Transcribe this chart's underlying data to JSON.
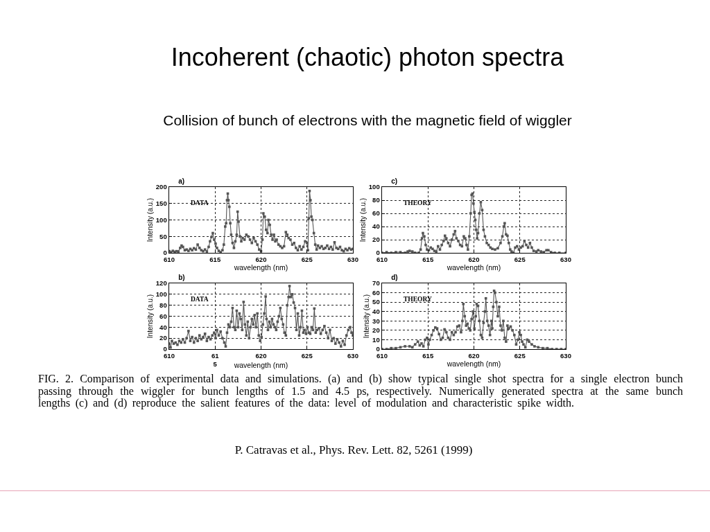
{
  "chart_data": [
    {
      "type": "other",
      "title": "Incoherent (chaotic) photon spectra",
      "subtitle": "Collision of bunch of electrons with the magnetic field of wiggler"
    },
    {
      "type": "line",
      "title": "a)",
      "xlabel": "wavelength (nm)",
      "ylabel": "Intensity (a.u.)",
      "annotations": [
        "DATA"
      ],
      "color": "#555555",
      "marker": "square",
      "line_style": "solid",
      "grid": true,
      "xlim": [
        610,
        630
      ],
      "xticks": [
        610,
        615,
        620,
        625,
        630
      ],
      "ylim": [
        0,
        200
      ],
      "yticks": [
        0,
        50,
        100,
        150,
        200
      ],
      "x": [
        610.0,
        610.2,
        610.4,
        610.6,
        610.8,
        611.0,
        611.2,
        611.35,
        611.5,
        611.7,
        611.9,
        612.1,
        612.3,
        612.5,
        612.7,
        612.9,
        613.1,
        613.3,
        613.5,
        613.7,
        613.9,
        614.1,
        614.3,
        614.45,
        614.6,
        614.75,
        614.9,
        615.05,
        615.2,
        615.4,
        615.6,
        615.8,
        615.95,
        616.1,
        616.2,
        616.3,
        616.38,
        616.45,
        616.55,
        616.65,
        616.75,
        616.9,
        617.05,
        617.2,
        617.35,
        617.45,
        617.55,
        617.7,
        617.85,
        618.0,
        618.2,
        618.4,
        618.6,
        618.8,
        619.0,
        619.2,
        619.4,
        619.6,
        619.8,
        620.0,
        620.15,
        620.25,
        620.4,
        620.55,
        620.7,
        620.8,
        620.95,
        621.1,
        621.25,
        621.4,
        621.55,
        621.7,
        621.9,
        622.1,
        622.3,
        622.5,
        622.7,
        622.85,
        623.0,
        623.2,
        623.4,
        623.6,
        623.8,
        624.0,
        624.2,
        624.4,
        624.6,
        624.8,
        625.0,
        625.1,
        625.2,
        625.28,
        625.38,
        625.48,
        625.6,
        625.75,
        625.9,
        626.05,
        626.2,
        626.4,
        626.6,
        626.8,
        627.0,
        627.2,
        627.4,
        627.6,
        627.8,
        628.0,
        628.2,
        628.4,
        628.6,
        628.8,
        629.0,
        629.2,
        629.4,
        629.6,
        629.8,
        630.0
      ],
      "values": [
        5,
        2,
        6,
        3,
        5,
        4,
        15,
        22,
        18,
        8,
        10,
        6,
        12,
        8,
        14,
        10,
        25,
        15,
        8,
        5,
        10,
        4,
        18,
        35,
        48,
        60,
        40,
        28,
        15,
        6,
        2,
        8,
        25,
        80,
        90,
        160,
        180,
        160,
        140,
        90,
        55,
        30,
        15,
        35,
        55,
        125,
        95,
        50,
        35,
        45,
        40,
        55,
        50,
        40,
        30,
        45,
        35,
        25,
        10,
        5,
        40,
        120,
        110,
        70,
        60,
        100,
        85,
        55,
        40,
        55,
        35,
        40,
        25,
        20,
        15,
        20,
        63,
        55,
        45,
        40,
        25,
        30,
        15,
        8,
        20,
        10,
        18,
        35,
        30,
        8,
        105,
        188,
        160,
        110,
        100,
        60,
        25,
        10,
        22,
        15,
        20,
        12,
        15,
        22,
        12,
        18,
        10,
        32,
        15,
        12,
        18,
        8,
        5,
        12,
        8,
        14,
        10,
        12
      ]
    },
    {
      "type": "line",
      "title": "c)",
      "xlabel": "wavelength (nm)",
      "ylabel": "Intensity (a.u.)",
      "annotations": [
        "THEORY"
      ],
      "color": "#555555",
      "marker": "square",
      "line_style": "solid",
      "grid": true,
      "xlim": [
        610,
        630
      ],
      "xticks": [
        610,
        615,
        620,
        625,
        630
      ],
      "ylim": [
        0,
        100
      ],
      "yticks": [
        0,
        20,
        40,
        60,
        80,
        100
      ],
      "x": [
        610.0,
        610.5,
        611.0,
        611.5,
        612.0,
        612.5,
        612.8,
        613.0,
        613.3,
        613.6,
        614.0,
        614.2,
        614.35,
        614.45,
        614.6,
        614.75,
        614.9,
        615.1,
        615.3,
        615.5,
        615.7,
        615.9,
        616.1,
        616.3,
        616.5,
        616.7,
        616.85,
        617.0,
        617.2,
        617.4,
        617.6,
        617.8,
        617.95,
        618.1,
        618.3,
        618.5,
        618.7,
        618.9,
        619.05,
        619.2,
        619.35,
        619.5,
        619.65,
        619.75,
        619.85,
        619.95,
        620.05,
        620.15,
        620.25,
        620.35,
        620.45,
        620.6,
        620.75,
        620.9,
        621.05,
        621.2,
        621.4,
        621.6,
        621.8,
        622.0,
        622.3,
        622.6,
        622.9,
        623.1,
        623.25,
        623.35,
        623.5,
        623.65,
        623.8,
        623.95,
        624.1,
        624.3,
        624.5,
        624.7,
        624.9,
        625.1,
        625.3,
        625.5,
        625.7,
        625.9,
        626.1,
        626.3,
        626.5,
        626.8,
        627.0,
        627.3,
        627.6,
        627.9,
        628.1,
        628.4,
        628.8,
        629.3,
        630.0
      ],
      "values": [
        0,
        1,
        0,
        1,
        1,
        0,
        2,
        3,
        2,
        0,
        0,
        5,
        22,
        30,
        25,
        12,
        5,
        4,
        8,
        6,
        3,
        2,
        10,
        5,
        12,
        18,
        26,
        22,
        15,
        10,
        20,
        28,
        33,
        22,
        18,
        12,
        10,
        25,
        22,
        12,
        5,
        25,
        60,
        88,
        90,
        75,
        62,
        50,
        35,
        22,
        30,
        60,
        77,
        65,
        35,
        25,
        15,
        12,
        8,
        6,
        5,
        7,
        15,
        25,
        40,
        45,
        28,
        26,
        15,
        5,
        2,
        0,
        8,
        10,
        5,
        8,
        10,
        18,
        12,
        8,
        15,
        8,
        3,
        2,
        4,
        2,
        1,
        4,
        4,
        1,
        0,
        0,
        0
      ]
    },
    {
      "type": "line",
      "title": "b)",
      "xlabel": "wavelength (nm)",
      "ylabel": "Intensity (a.u.)",
      "annotations": [
        "DATA"
      ],
      "color": "#555555",
      "marker": "square",
      "line_style": "solid",
      "grid": true,
      "xlim": [
        610,
        630
      ],
      "xticks": [
        610,
        {
          "value": 615,
          "label": "61\n5"
        },
        620,
        625,
        630
      ],
      "ylim": [
        0,
        120
      ],
      "yticks": [
        0,
        20,
        40,
        60,
        80,
        100,
        120
      ],
      "x": [
        610.0,
        610.15,
        610.3,
        610.5,
        610.7,
        610.9,
        611.1,
        611.3,
        611.5,
        611.7,
        611.9,
        612.1,
        612.3,
        612.5,
        612.7,
        612.9,
        613.1,
        613.3,
        613.5,
        613.7,
        613.9,
        614.1,
        614.3,
        614.5,
        614.7,
        614.9,
        615.05,
        615.2,
        615.4,
        615.6,
        615.8,
        616.0,
        616.15,
        616.3,
        616.45,
        616.6,
        616.75,
        616.9,
        617.05,
        617.2,
        617.35,
        617.5,
        617.65,
        617.8,
        617.95,
        618.1,
        618.25,
        618.4,
        618.55,
        618.7,
        618.85,
        619.0,
        619.15,
        619.3,
        619.45,
        619.6,
        619.75,
        619.9,
        620.05,
        620.2,
        620.35,
        620.5,
        620.6,
        620.75,
        620.9,
        621.05,
        621.2,
        621.35,
        621.5,
        621.65,
        621.8,
        621.95,
        622.1,
        622.25,
        622.4,
        622.55,
        622.7,
        622.85,
        623.0,
        623.1,
        623.25,
        623.4,
        623.55,
        623.7,
        623.85,
        624.0,
        624.15,
        624.3,
        624.45,
        624.6,
        624.75,
        624.9,
        625.05,
        625.2,
        625.35,
        625.5,
        625.65,
        625.8,
        625.95,
        626.1,
        626.3,
        626.5,
        626.7,
        626.9,
        627.1,
        627.3,
        627.5,
        627.7,
        627.9,
        628.1,
        628.3,
        628.5,
        628.7,
        628.9,
        629.1,
        629.3,
        629.5,
        629.7,
        629.85,
        630.0
      ],
      "values": [
        10,
        3,
        15,
        10,
        12,
        8,
        15,
        12,
        18,
        12,
        20,
        33,
        15,
        22,
        12,
        20,
        15,
        25,
        18,
        22,
        28,
        15,
        22,
        18,
        25,
        30,
        20,
        35,
        25,
        32,
        20,
        12,
        5,
        30,
        45,
        40,
        50,
        75,
        40,
        35,
        70,
        40,
        65,
        55,
        35,
        86,
        45,
        25,
        50,
        20,
        40,
        55,
        45,
        62,
        40,
        65,
        25,
        15,
        22,
        45,
        65,
        96,
        55,
        35,
        50,
        40,
        55,
        45,
        40,
        35,
        50,
        60,
        75,
        55,
        45,
        30,
        25,
        80,
        95,
        115,
        95,
        100,
        85,
        75,
        35,
        65,
        25,
        40,
        70,
        30,
        35,
        28,
        40,
        30,
        28,
        40,
        35,
        74,
        30,
        35,
        38,
        28,
        35,
        42,
        30,
        20,
        35,
        15,
        20,
        10,
        18,
        12,
        5,
        15,
        8,
        25,
        35,
        40,
        30,
        25
      ]
    },
    {
      "type": "line",
      "title": "d)",
      "xlabel": "wavelength (nm)",
      "ylabel": "Intensity (a.u.)",
      "annotations": [
        "THEORY"
      ],
      "color": "#555555",
      "marker": "square",
      "line_style": "solid",
      "grid": true,
      "xlim": [
        610,
        630
      ],
      "xticks": [
        610,
        615,
        620,
        625,
        630
      ],
      "ylim": [
        0,
        70
      ],
      "yticks": [
        0,
        10,
        20,
        30,
        40,
        50,
        60,
        70
      ],
      "x": [
        610.0,
        610.5,
        611.0,
        611.5,
        612.0,
        612.5,
        613.0,
        613.3,
        613.6,
        613.9,
        614.1,
        614.3,
        614.5,
        614.7,
        614.9,
        615.05,
        615.2,
        615.4,
        615.6,
        615.8,
        616.0,
        616.2,
        616.4,
        616.6,
        616.8,
        617.0,
        617.2,
        617.4,
        617.6,
        617.8,
        618.0,
        618.2,
        618.4,
        618.6,
        618.75,
        618.85,
        619.0,
        619.15,
        619.3,
        619.45,
        619.6,
        619.75,
        619.9,
        620.05,
        620.2,
        620.3,
        620.45,
        620.6,
        620.75,
        620.9,
        621.05,
        621.2,
        621.3,
        621.45,
        621.6,
        621.75,
        621.9,
        622.0,
        622.1,
        622.2,
        622.3,
        622.45,
        622.6,
        622.75,
        622.9,
        623.05,
        623.2,
        623.35,
        623.5,
        623.65,
        623.8,
        624.0,
        624.2,
        624.4,
        624.6,
        624.8,
        624.95,
        625.1,
        625.25,
        625.4,
        625.6,
        625.8,
        626.0,
        626.3,
        626.6,
        627.0,
        627.5,
        628.0,
        628.5,
        629.0,
        629.5,
        630.0
      ],
      "values": [
        0,
        0,
        1,
        1,
        2,
        3,
        3,
        2,
        5,
        8,
        4,
        6,
        3,
        10,
        12,
        5,
        10,
        15,
        20,
        23,
        22,
        16,
        10,
        12,
        21,
        18,
        12,
        10,
        18,
        15,
        18,
        24,
        25,
        18,
        30,
        48,
        35,
        25,
        27,
        22,
        20,
        32,
        40,
        22,
        35,
        48,
        46,
        30,
        15,
        12,
        28,
        40,
        54,
        30,
        25,
        15,
        30,
        22,
        45,
        62,
        60,
        50,
        35,
        45,
        25,
        20,
        30,
        12,
        8,
        25,
        22,
        24,
        20,
        15,
        5,
        10,
        18,
        15,
        8,
        5,
        2,
        10,
        8,
        5,
        3,
        2,
        1,
        1,
        0,
        0,
        0,
        0
      ]
    },
    {
      "type": "other",
      "annotations": [
        "FIG. 2. Comparison of experimental data and simulations. (a) and (b) show typical single shot spectra for a single electron bunch passing through the wiggler for bunch lengths of 1.5 and 4.5 ps, respectively. Numerically generated spectra at the same bunch lengths (c) and (d) reproduce the salient features of the data: level of modulation and characteristic spike width.",
        "P. Catravas et al., Phys. Rev. Lett. 82, 5261 (1999)"
      ]
    }
  ]
}
